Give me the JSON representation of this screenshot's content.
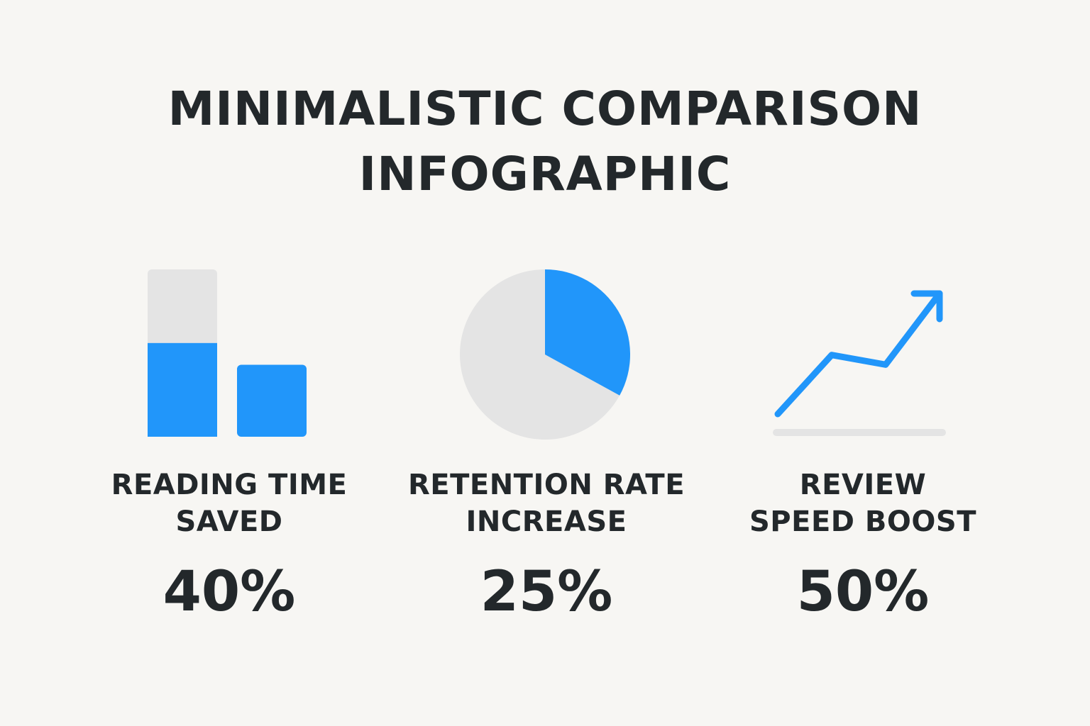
{
  "title": {
    "line1": "MINIMALISTIC COMPARISON",
    "line2": "INFOGRAPHIC"
  },
  "colors": {
    "accent": "#2196fa",
    "track": "#e4e4e4",
    "background": "#f7f6f3",
    "text": "#23282b"
  },
  "metrics": [
    {
      "icon": "bar-chart-icon",
      "label_line1": "READING TIME",
      "label_line2": "SAVED",
      "value": "40%"
    },
    {
      "icon": "pie-chart-icon",
      "label_line1": "RETENTION RATE",
      "label_line2": "INCREASE",
      "value": "25%"
    },
    {
      "icon": "trend-arrow-icon",
      "label_line1": "REVIEW",
      "label_line2": "SPEED BOOST",
      "value": "50%"
    }
  ],
  "chart_data": [
    {
      "type": "bar",
      "categories": [
        "bar-1",
        "bar-2"
      ],
      "values": [
        0.56,
        0.43
      ],
      "ylim": [
        0,
        1
      ],
      "track_on_first_bar": true
    },
    {
      "type": "pie",
      "slices": [
        {
          "name": "highlighted",
          "value": 0.33
        },
        {
          "name": "remainder",
          "value": 0.67
        }
      ],
      "start_angle_deg": 0
    },
    {
      "type": "line",
      "x": [
        0,
        1,
        2,
        3
      ],
      "y": [
        0.0,
        0.49,
        0.41,
        1.0
      ],
      "arrow_at_end": true,
      "baseline": true
    }
  ]
}
